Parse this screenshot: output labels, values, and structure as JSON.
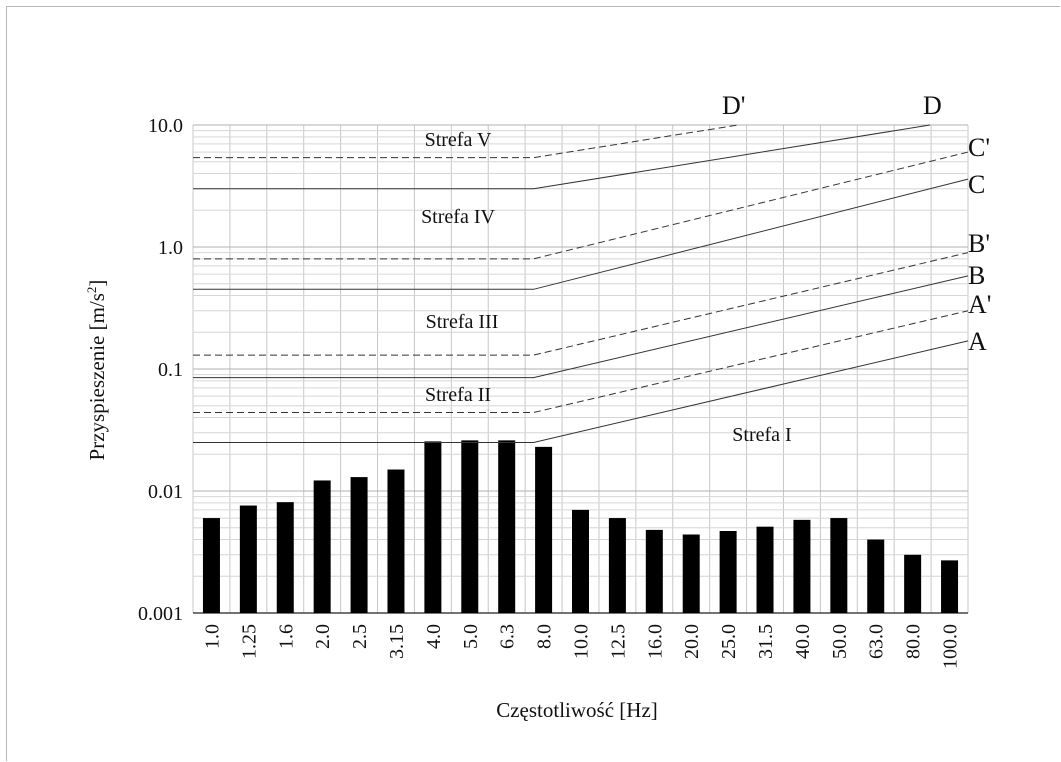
{
  "chart_data": {
    "type": "bar",
    "title": "",
    "xlabel": "Częstotliwość [Hz]",
    "ylabel": "Przyspieszenie [m/s",
    "ylabel_sup": "2",
    "ylabel_end": "]",
    "yscale": "log",
    "ylim": [
      0.001,
      10.0
    ],
    "yticks": [
      "0.001",
      "0.01",
      "0.1",
      "1.0",
      "10.0"
    ],
    "categories": [
      "1.0",
      "1.25",
      "1.6",
      "2.0",
      "2.5",
      "3.15",
      "4.0",
      "5.0",
      "6.3",
      "8.0",
      "10.0",
      "12.5",
      "16.0",
      "20.0",
      "25.0",
      "31.5",
      "40.0",
      "50.0",
      "63.0",
      "80.0",
      "100.0"
    ],
    "values": [
      0.006,
      0.0076,
      0.0081,
      0.0122,
      0.013,
      0.015,
      0.0255,
      0.026,
      0.026,
      0.023,
      0.007,
      0.006,
      0.0048,
      0.0044,
      0.0047,
      0.0051,
      0.0058,
      0.006,
      0.004,
      0.003,
      0.0027
    ],
    "limit_lines": [
      {
        "name": "A",
        "dashed": false,
        "flat_value": 0.025,
        "end_value": 0.17
      },
      {
        "name": "A'",
        "dashed": true,
        "flat_value": 0.044,
        "end_value": 0.3
      },
      {
        "name": "B",
        "dashed": false,
        "flat_value": 0.085,
        "end_value": 0.58
      },
      {
        "name": "B'",
        "dashed": true,
        "flat_value": 0.13,
        "end_value": 0.9
      },
      {
        "name": "C",
        "dashed": false,
        "flat_value": 0.45,
        "end_value": 3.6
      },
      {
        "name": "C'",
        "dashed": true,
        "flat_value": 0.8,
        "end_value": 6.0
      },
      {
        "name": "D",
        "dashed": false,
        "flat_value": 3.0,
        "end_value": 10.0
      },
      {
        "name": "D'",
        "dashed": true,
        "flat_value": 5.4,
        "end_value": 10.0
      }
    ],
    "zones": [
      "Strefa V",
      "Strefa IV",
      "Strefa III",
      "Strefa II",
      "Strefa I"
    ],
    "grid": true,
    "colors": {
      "bars": "#000000",
      "grid": "#c8c8c8",
      "lines": "#333333"
    }
  }
}
